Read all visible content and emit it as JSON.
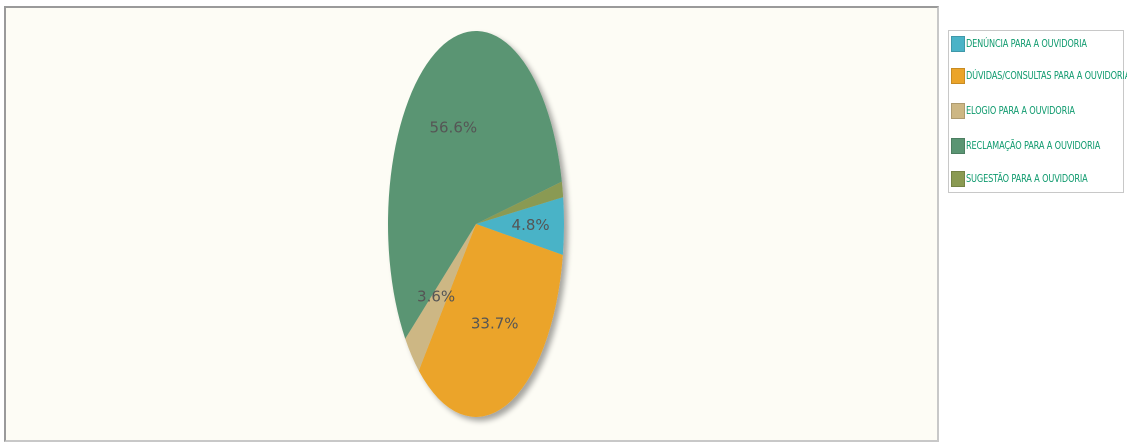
{
  "chart_data": {
    "type": "pie",
    "title": "",
    "legend_position": "right",
    "slices": [
      {
        "name": "DENÚNCIA PARA A OUVIDORIA",
        "value": 4.8,
        "label": "4.8%",
        "color": "#4ab3c7"
      },
      {
        "name": "DÚVIDAS/CONSULTAS PARA A OUVIDORIA",
        "value": 33.7,
        "label": "33.7%",
        "color": "#eba429"
      },
      {
        "name": "ELOGIO PARA A OUVIDORIA",
        "value": 3.6,
        "label": "3.6%",
        "color": "#cdb784"
      },
      {
        "name": "RECLAMAÇÃO PARA A OUVIDORIA",
        "value": 56.6,
        "label": "56.6%",
        "color": "#5a9573"
      },
      {
        "name": "SUGESTÃO PARA A OUVIDORIA",
        "value": 1.3,
        "label": "",
        "color": "#8a9a52"
      }
    ]
  }
}
